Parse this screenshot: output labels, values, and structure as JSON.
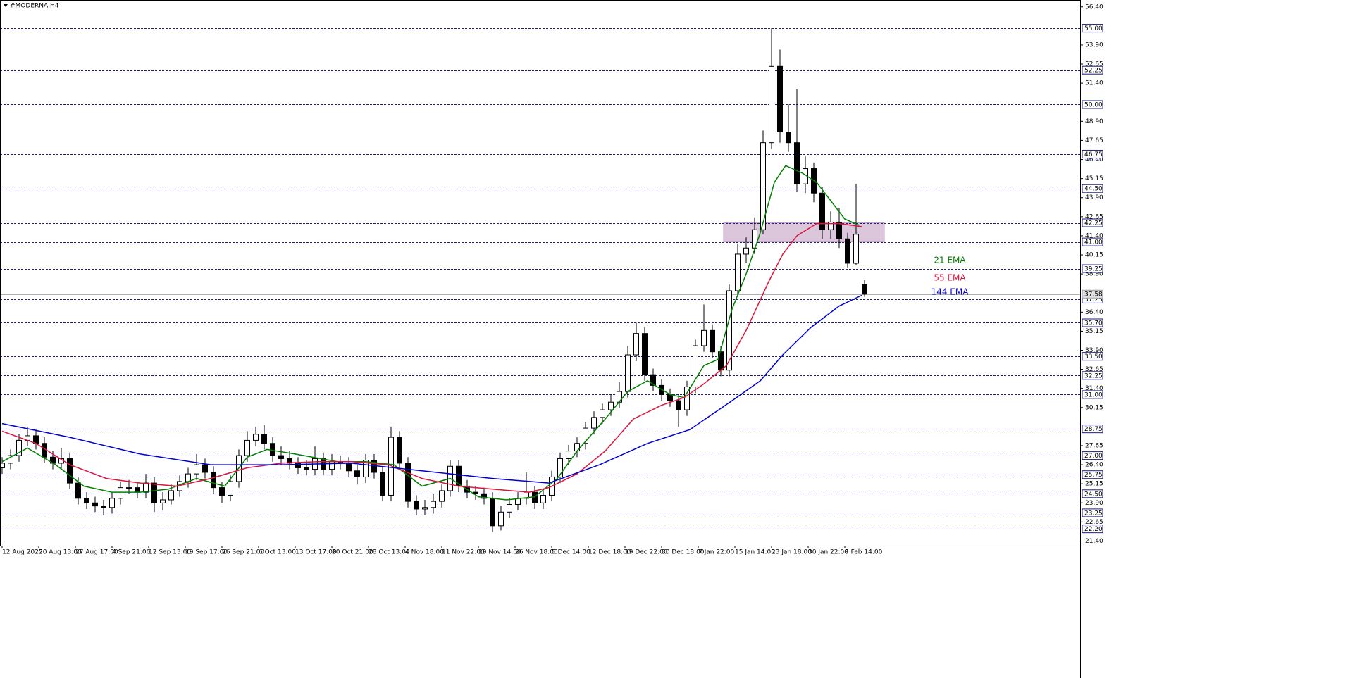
{
  "chart_data": {
    "type": "candlestick",
    "title": "#MODERNA,H4",
    "up_color": "#ffffff",
    "down_color": "#000000",
    "line_color": "#000000",
    "level_color": "#1e1e78",
    "x": [
      0,
      3,
      6,
      9,
      12,
      15,
      18,
      21,
      24,
      27,
      30,
      33,
      36,
      39,
      42,
      45,
      48,
      51,
      54,
      57,
      60,
      63,
      66,
      69,
      72,
      75,
      78,
      81,
      84,
      87,
      90,
      93,
      96,
      99,
      102,
      105,
      108,
      111,
      114,
      117,
      120,
      123,
      126,
      129,
      132,
      135,
      138,
      141,
      144,
      147,
      150,
      153,
      156,
      159,
      162,
      165,
      168,
      171,
      174,
      177,
      180,
      183,
      186,
      189,
      192,
      195,
      198,
      201,
      204,
      207,
      210,
      213,
      216,
      219,
      222,
      225,
      228,
      231,
      234,
      237,
      240,
      243,
      246,
      249,
      252,
      255,
      258,
      261,
      264,
      267,
      270,
      273,
      276,
      279,
      282,
      285,
      288,
      291,
      294,
      297,
      300,
      303,
      306
    ],
    "open": [
      26.2,
      26.5,
      27.0,
      28.0,
      28.3,
      27.8,
      26.9,
      26.5,
      26.8,
      25.2,
      24.2,
      23.9,
      23.7,
      23.6,
      24.2,
      24.9,
      24.9,
      24.6,
      25.2,
      23.9,
      24.1,
      24.7,
      25.3,
      25.8,
      26.4,
      25.9,
      24.9,
      24.4,
      25.3,
      27.0,
      28.0,
      28.4,
      27.8,
      27.0,
      26.8,
      26.5,
      26.2,
      26.1,
      26.8,
      26.1,
      26.6,
      26.5,
      26.0,
      25.6,
      26.7,
      25.9,
      24.4,
      28.2,
      26.5,
      24.0,
      23.5,
      23.6,
      24.0,
      24.7,
      26.3,
      25.0,
      24.6,
      24.5,
      24.2,
      22.4,
      23.3,
      23.8,
      24.2,
      24.6,
      23.9,
      24.4,
      25.6,
      26.8,
      27.3,
      27.8,
      28.8,
      29.5,
      30.0,
      30.5,
      31.2,
      33.6,
      35.0,
      32.3,
      31.6,
      31.0,
      30.6,
      30.0,
      31.5,
      34.2,
      35.2,
      33.8,
      32.6,
      37.8,
      40.2,
      40.6,
      41.8,
      47.5,
      52.5,
      48.2,
      47.5,
      44.8,
      45.8,
      44.2,
      41.8,
      42.3,
      41.2,
      39.6,
      38.2
    ],
    "high": [
      26.9,
      27.4,
      28.4,
      28.9,
      28.7,
      28.2,
      27.3,
      27.5,
      27.2,
      25.6,
      24.6,
      24.3,
      24.1,
      24.6,
      25.3,
      25.4,
      25.3,
      25.8,
      25.6,
      24.6,
      25.1,
      25.7,
      26.2,
      27.1,
      26.8,
      26.3,
      25.3,
      25.7,
      27.4,
      28.6,
      28.9,
      29.0,
      28.2,
      27.6,
      27.3,
      26.9,
      26.7,
      27.6,
      27.2,
      27.1,
      27.0,
      26.9,
      26.4,
      27.1,
      27.1,
      26.3,
      28.9,
      28.6,
      26.9,
      24.4,
      24.1,
      24.5,
      25.1,
      26.7,
      26.7,
      25.4,
      25.0,
      24.9,
      24.6,
      23.7,
      24.2,
      24.6,
      25.9,
      25.0,
      24.8,
      26.0,
      27.2,
      27.7,
      28.2,
      29.2,
      29.9,
      30.4,
      31.0,
      31.8,
      34.2,
      35.7,
      35.4,
      32.7,
      32.0,
      31.4,
      31.0,
      31.9,
      34.6,
      36.9,
      35.6,
      34.2,
      38.2,
      40.9,
      41.3,
      42.6,
      48.3,
      55.0,
      53.6,
      50.0,
      51.0,
      46.6,
      46.2,
      44.6,
      43.0,
      43.2,
      41.6,
      44.8,
      38.5
    ],
    "low": [
      25.8,
      26.1,
      26.6,
      27.6,
      27.4,
      26.5,
      26.1,
      26.1,
      24.8,
      23.8,
      23.5,
      23.3,
      23.1,
      23.2,
      23.8,
      24.5,
      24.2,
      24.2,
      23.3,
      23.4,
      23.8,
      24.3,
      24.9,
      25.4,
      25.5,
      24.5,
      23.9,
      24.0,
      24.9,
      26.6,
      27.6,
      27.4,
      26.6,
      26.4,
      26.1,
      25.8,
      25.7,
      25.7,
      25.7,
      25.7,
      26.1,
      25.6,
      25.1,
      25.2,
      25.5,
      24.0,
      24.0,
      26.1,
      23.6,
      23.1,
      23.1,
      23.2,
      23.6,
      24.3,
      24.6,
      24.2,
      24.1,
      23.8,
      22.0,
      22.1,
      22.9,
      23.4,
      23.8,
      23.5,
      23.5,
      24.0,
      25.2,
      26.4,
      26.9,
      27.4,
      28.4,
      29.1,
      29.6,
      30.1,
      30.8,
      33.2,
      31.9,
      31.2,
      30.6,
      30.2,
      28.9,
      29.6,
      31.1,
      33.8,
      33.4,
      32.2,
      32.2,
      37.4,
      39.6,
      40.2,
      41.5,
      47.1,
      47.5,
      46.9,
      44.3,
      44.2,
      43.6,
      41.2,
      41.2,
      40.6,
      39.3,
      39.5,
      37.4
    ],
    "close": [
      26.5,
      27.0,
      28.0,
      28.3,
      27.8,
      26.9,
      26.5,
      26.8,
      25.2,
      24.2,
      23.9,
      23.7,
      23.6,
      24.2,
      24.9,
      24.9,
      24.6,
      25.2,
      23.9,
      24.1,
      24.7,
      25.3,
      25.8,
      26.4,
      25.9,
      24.9,
      24.4,
      25.3,
      27.0,
      28.0,
      28.4,
      27.8,
      27.0,
      26.8,
      26.5,
      26.2,
      26.1,
      26.8,
      26.1,
      26.6,
      26.5,
      26.0,
      25.6,
      26.7,
      25.9,
      24.4,
      28.2,
      26.5,
      24.0,
      23.5,
      23.6,
      24.0,
      24.7,
      26.3,
      25.0,
      24.6,
      24.5,
      24.2,
      22.4,
      23.3,
      23.8,
      24.2,
      24.6,
      23.9,
      24.4,
      25.6,
      26.8,
      27.3,
      27.8,
      28.8,
      29.5,
      30.0,
      30.5,
      31.2,
      33.6,
      35.0,
      32.3,
      31.6,
      31.0,
      30.6,
      30.0,
      31.5,
      34.2,
      35.2,
      33.8,
      32.6,
      37.8,
      40.2,
      40.6,
      41.8,
      47.5,
      52.5,
      48.2,
      47.5,
      44.8,
      45.8,
      44.2,
      41.8,
      42.3,
      41.2,
      39.6,
      41.5,
      37.58
    ],
    "series": [
      {
        "name": "21 EMA",
        "color": "#008000",
        "x": [
          0,
          9,
          19,
          29,
          39,
          49,
          59,
          69,
          79,
          87,
          94,
          104,
          119,
          129,
          139,
          149,
          159,
          169,
          179,
          189,
          197,
          204,
          214,
          222,
          229,
          237,
          242,
          249,
          254,
          259,
          264,
          269,
          274,
          278,
          284,
          289,
          294,
          299,
          304
        ],
        "values": [
          26.6,
          27.5,
          26.4,
          25.0,
          24.6,
          24.6,
          24.8,
          25.5,
          25.0,
          26.9,
          27.4,
          27.1,
          26.6,
          26.6,
          26.4,
          25.0,
          25.5,
          24.3,
          24.1,
          24.3,
          25.5,
          27.3,
          29.4,
          31.2,
          31.9,
          31.0,
          30.8,
          32.9,
          33.3,
          36.6,
          38.9,
          41.6,
          44.9,
          46.0,
          45.5,
          44.9,
          43.7,
          42.5,
          42.1
        ]
      },
      {
        "name": "55 EMA",
        "color": "#dc143c",
        "x": [
          0,
          12,
          24,
          37,
          49,
          62,
          74,
          87,
          99,
          112,
          124,
          137,
          149,
          162,
          174,
          187,
          194,
          204,
          214,
          224,
          234,
          242,
          249,
          257,
          264,
          272,
          277,
          282,
          289,
          297,
          305
        ],
        "values": [
          28.6,
          27.8,
          26.4,
          25.5,
          25.2,
          25.0,
          25.5,
          26.2,
          26.5,
          26.6,
          26.6,
          26.4,
          25.5,
          25.0,
          24.8,
          24.6,
          24.9,
          25.8,
          27.3,
          29.4,
          30.3,
          30.8,
          31.7,
          32.9,
          35.2,
          38.4,
          40.2,
          41.4,
          42.2,
          42.2,
          42.0
        ]
      },
      {
        "name": "144 EMA",
        "color": "#0000cd",
        "x": [
          0,
          24,
          49,
          74,
          99,
          124,
          149,
          174,
          194,
          212,
          229,
          244,
          259,
          269,
          277,
          287,
          297,
          305
        ],
        "values": [
          29.1,
          28.2,
          27.1,
          26.4,
          26.4,
          26.5,
          26.0,
          25.5,
          25.2,
          26.4,
          27.8,
          28.7,
          30.6,
          31.9,
          33.6,
          35.4,
          36.8,
          37.5
        ]
      }
    ],
    "zone": {
      "from": 42.25,
      "to": 41.0,
      "color": "#dcc6dc"
    },
    "current_price": 37.58,
    "levels": [
      {
        "value": 55,
        "label": "55.00"
      },
      {
        "value": 52.25,
        "label": "52.25"
      },
      {
        "value": 50,
        "label": "50.00"
      },
      {
        "value": 46.75,
        "label": "46.75"
      },
      {
        "value": 44.5,
        "label": "44.50"
      },
      {
        "value": 42.25,
        "label": "42.25"
      },
      {
        "value": 41,
        "label": "41.00"
      },
      {
        "value": 39.25,
        "label": "39.25"
      },
      {
        "value": 37.25,
        "label": "37.25"
      },
      {
        "value": 35.7,
        "label": "35.70"
      },
      {
        "value": 33.5,
        "label": "33.50"
      },
      {
        "value": 32.25,
        "label": "32.25"
      },
      {
        "value": 31,
        "label": "31.00"
      },
      {
        "value": 28.75,
        "label": "28.75"
      },
      {
        "value": 27,
        "label": "27.00"
      },
      {
        "value": 25.75,
        "label": "25.75"
      },
      {
        "value": 24.5,
        "label": "24.50"
      },
      {
        "value": 23.25,
        "label": "23.25"
      },
      {
        "value": 22.2,
        "label": "22.20"
      }
    ],
    "xlim": [
      -0.75,
      382.5
    ],
    "xticks": [
      {
        "value": 0,
        "label": "12 Aug 2025"
      },
      {
        "value": 13,
        "label": "20 Aug 13:00"
      },
      {
        "value": 26,
        "label": "27 Aug 17:00"
      },
      {
        "value": 39,
        "label": "4 Sep 21:00"
      },
      {
        "value": 52,
        "label": "12 Sep 13:00"
      },
      {
        "value": 65,
        "label": "19 Sep 17:00"
      },
      {
        "value": 78,
        "label": "26 Sep 21:00"
      },
      {
        "value": 91,
        "label": "6 Oct 13:00"
      },
      {
        "value": 104,
        "label": "13 Oct 17:00"
      },
      {
        "value": 117,
        "label": "20 Oct 21:00"
      },
      {
        "value": 130,
        "label": "28 Oct 13:00"
      },
      {
        "value": 143,
        "label": "4 Nov 18:00"
      },
      {
        "value": 156,
        "label": "11 Nov 22:00"
      },
      {
        "value": 169,
        "label": "19 Nov 14:00"
      },
      {
        "value": 182,
        "label": "26 Nov 18:00"
      },
      {
        "value": 195,
        "label": "5 Dec 14:00"
      },
      {
        "value": 208,
        "label": "12 Dec 18:00"
      },
      {
        "value": 221,
        "label": "19 Dec 22:00"
      },
      {
        "value": 234,
        "label": "30 Dec 18:00"
      },
      {
        "value": 247,
        "label": "7 Jan 22:00"
      },
      {
        "value": 260,
        "label": "15 Jan 14:00"
      },
      {
        "value": 273,
        "label": "23 Jan 18:00"
      },
      {
        "value": 286,
        "label": "30 Jan 22:00"
      },
      {
        "value": 299,
        "label": "9 Feb 14:00"
      }
    ],
    "ylim": [
      21.1,
      56.85
    ],
    "yticks": [
      {
        "value": 56.4,
        "label": "56.40"
      },
      {
        "value": 53.9,
        "label": "53.90"
      },
      {
        "value": 52.65,
        "label": "52.65"
      },
      {
        "value": 51.4,
        "label": "51.40"
      },
      {
        "value": 48.9,
        "label": "48.90"
      },
      {
        "value": 47.65,
        "label": "47.65"
      },
      {
        "value": 46.4,
        "label": "46.40"
      },
      {
        "value": 45.15,
        "label": "45.15"
      },
      {
        "value": 43.9,
        "label": "43.90"
      },
      {
        "value": 42.65,
        "label": "42.65"
      },
      {
        "value": 41.4,
        "label": "41.40"
      },
      {
        "value": 40.15,
        "label": "40.15"
      },
      {
        "value": 38.9,
        "label": "38.90"
      },
      {
        "value": 36.4,
        "label": "36.40"
      },
      {
        "value": 35.15,
        "label": "35.15"
      },
      {
        "value": 33.9,
        "label": "33.90"
      },
      {
        "value": 32.65,
        "label": "32.65"
      },
      {
        "value": 31.4,
        "label": "31.40"
      },
      {
        "value": 30.15,
        "label": "30.15"
      },
      {
        "value": 27.65,
        "label": "27.65"
      },
      {
        "value": 26.4,
        "label": "26.40"
      },
      {
        "value": 25.15,
        "label": "25.15"
      },
      {
        "value": 23.9,
        "label": "23.90"
      },
      {
        "value": 22.65,
        "label": "22.65"
      },
      {
        "value": 21.4,
        "label": "21.40"
      }
    ]
  }
}
